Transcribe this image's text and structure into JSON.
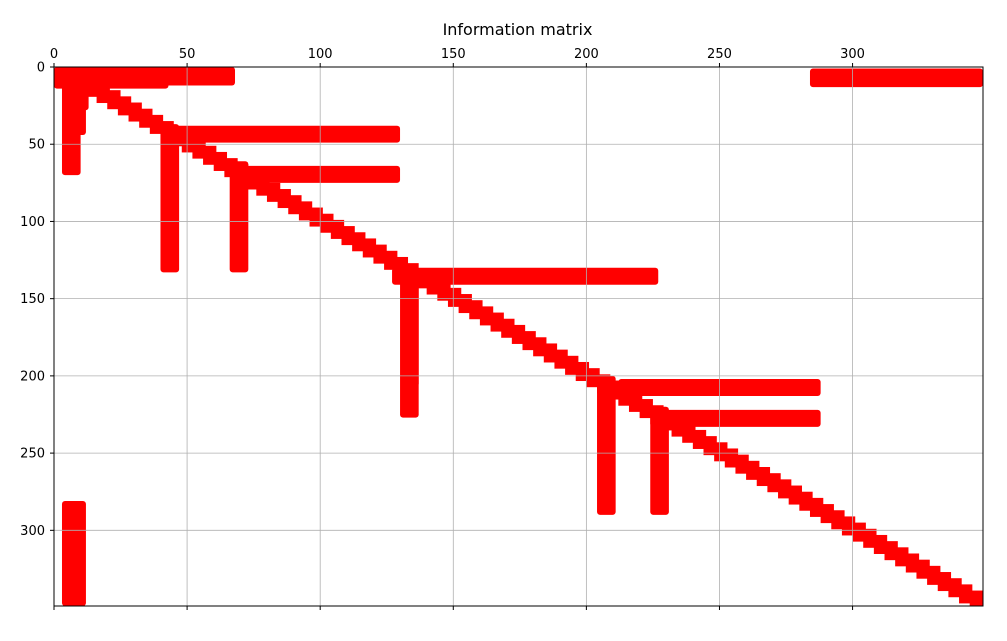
{
  "chart_data": {
    "type": "heatmap",
    "title": "Information matrix",
    "xlabel": "",
    "ylabel": "",
    "xlim": [
      0,
      349
    ],
    "ylim": [
      349,
      0
    ],
    "x_axis_position": "top",
    "x_ticks": [
      0,
      50,
      100,
      150,
      200,
      250,
      300
    ],
    "y_ticks": [
      0,
      50,
      100,
      150,
      200,
      250,
      300
    ],
    "grid": true,
    "mark_color": "#ff0000",
    "grid_color": "#b0b0b0",
    "diagonal": {
      "from": 3,
      "to": 349,
      "band": [
        -3,
        10
      ]
    },
    "blocks": [
      {
        "x": 0,
        "y": 0,
        "w": 14,
        "h": 14
      },
      {
        "x": 3,
        "y": 0,
        "w": 65,
        "h": 12
      },
      {
        "x": 3,
        "y": 6,
        "w": 40,
        "h": 8
      },
      {
        "x": 284,
        "y": 1,
        "w": 65,
        "h": 12
      },
      {
        "x": 8,
        "y": 0,
        "w": 4,
        "h": 44
      },
      {
        "x": 3,
        "y": 0,
        "w": 7,
        "h": 70
      },
      {
        "x": 10,
        "y": 14,
        "w": 3,
        "h": 14
      },
      {
        "x": 40,
        "y": 37,
        "w": 7,
        "h": 96
      },
      {
        "x": 45,
        "y": 38,
        "w": 85,
        "h": 11
      },
      {
        "x": 66,
        "y": 61,
        "w": 7,
        "h": 72
      },
      {
        "x": 72,
        "y": 64,
        "w": 58,
        "h": 11
      },
      {
        "x": 127,
        "y": 130,
        "w": 100,
        "h": 11
      },
      {
        "x": 130,
        "y": 130,
        "w": 7,
        "h": 97
      },
      {
        "x": 134,
        "y": 130,
        "w": 3,
        "h": 77
      },
      {
        "x": 204,
        "y": 200,
        "w": 7,
        "h": 90
      },
      {
        "x": 212,
        "y": 202,
        "w": 76,
        "h": 11
      },
      {
        "x": 224,
        "y": 220,
        "w": 7,
        "h": 70
      },
      {
        "x": 230,
        "y": 222,
        "w": 58,
        "h": 11
      },
      {
        "x": 3,
        "y": 281,
        "w": 9,
        "h": 68
      }
    ]
  }
}
